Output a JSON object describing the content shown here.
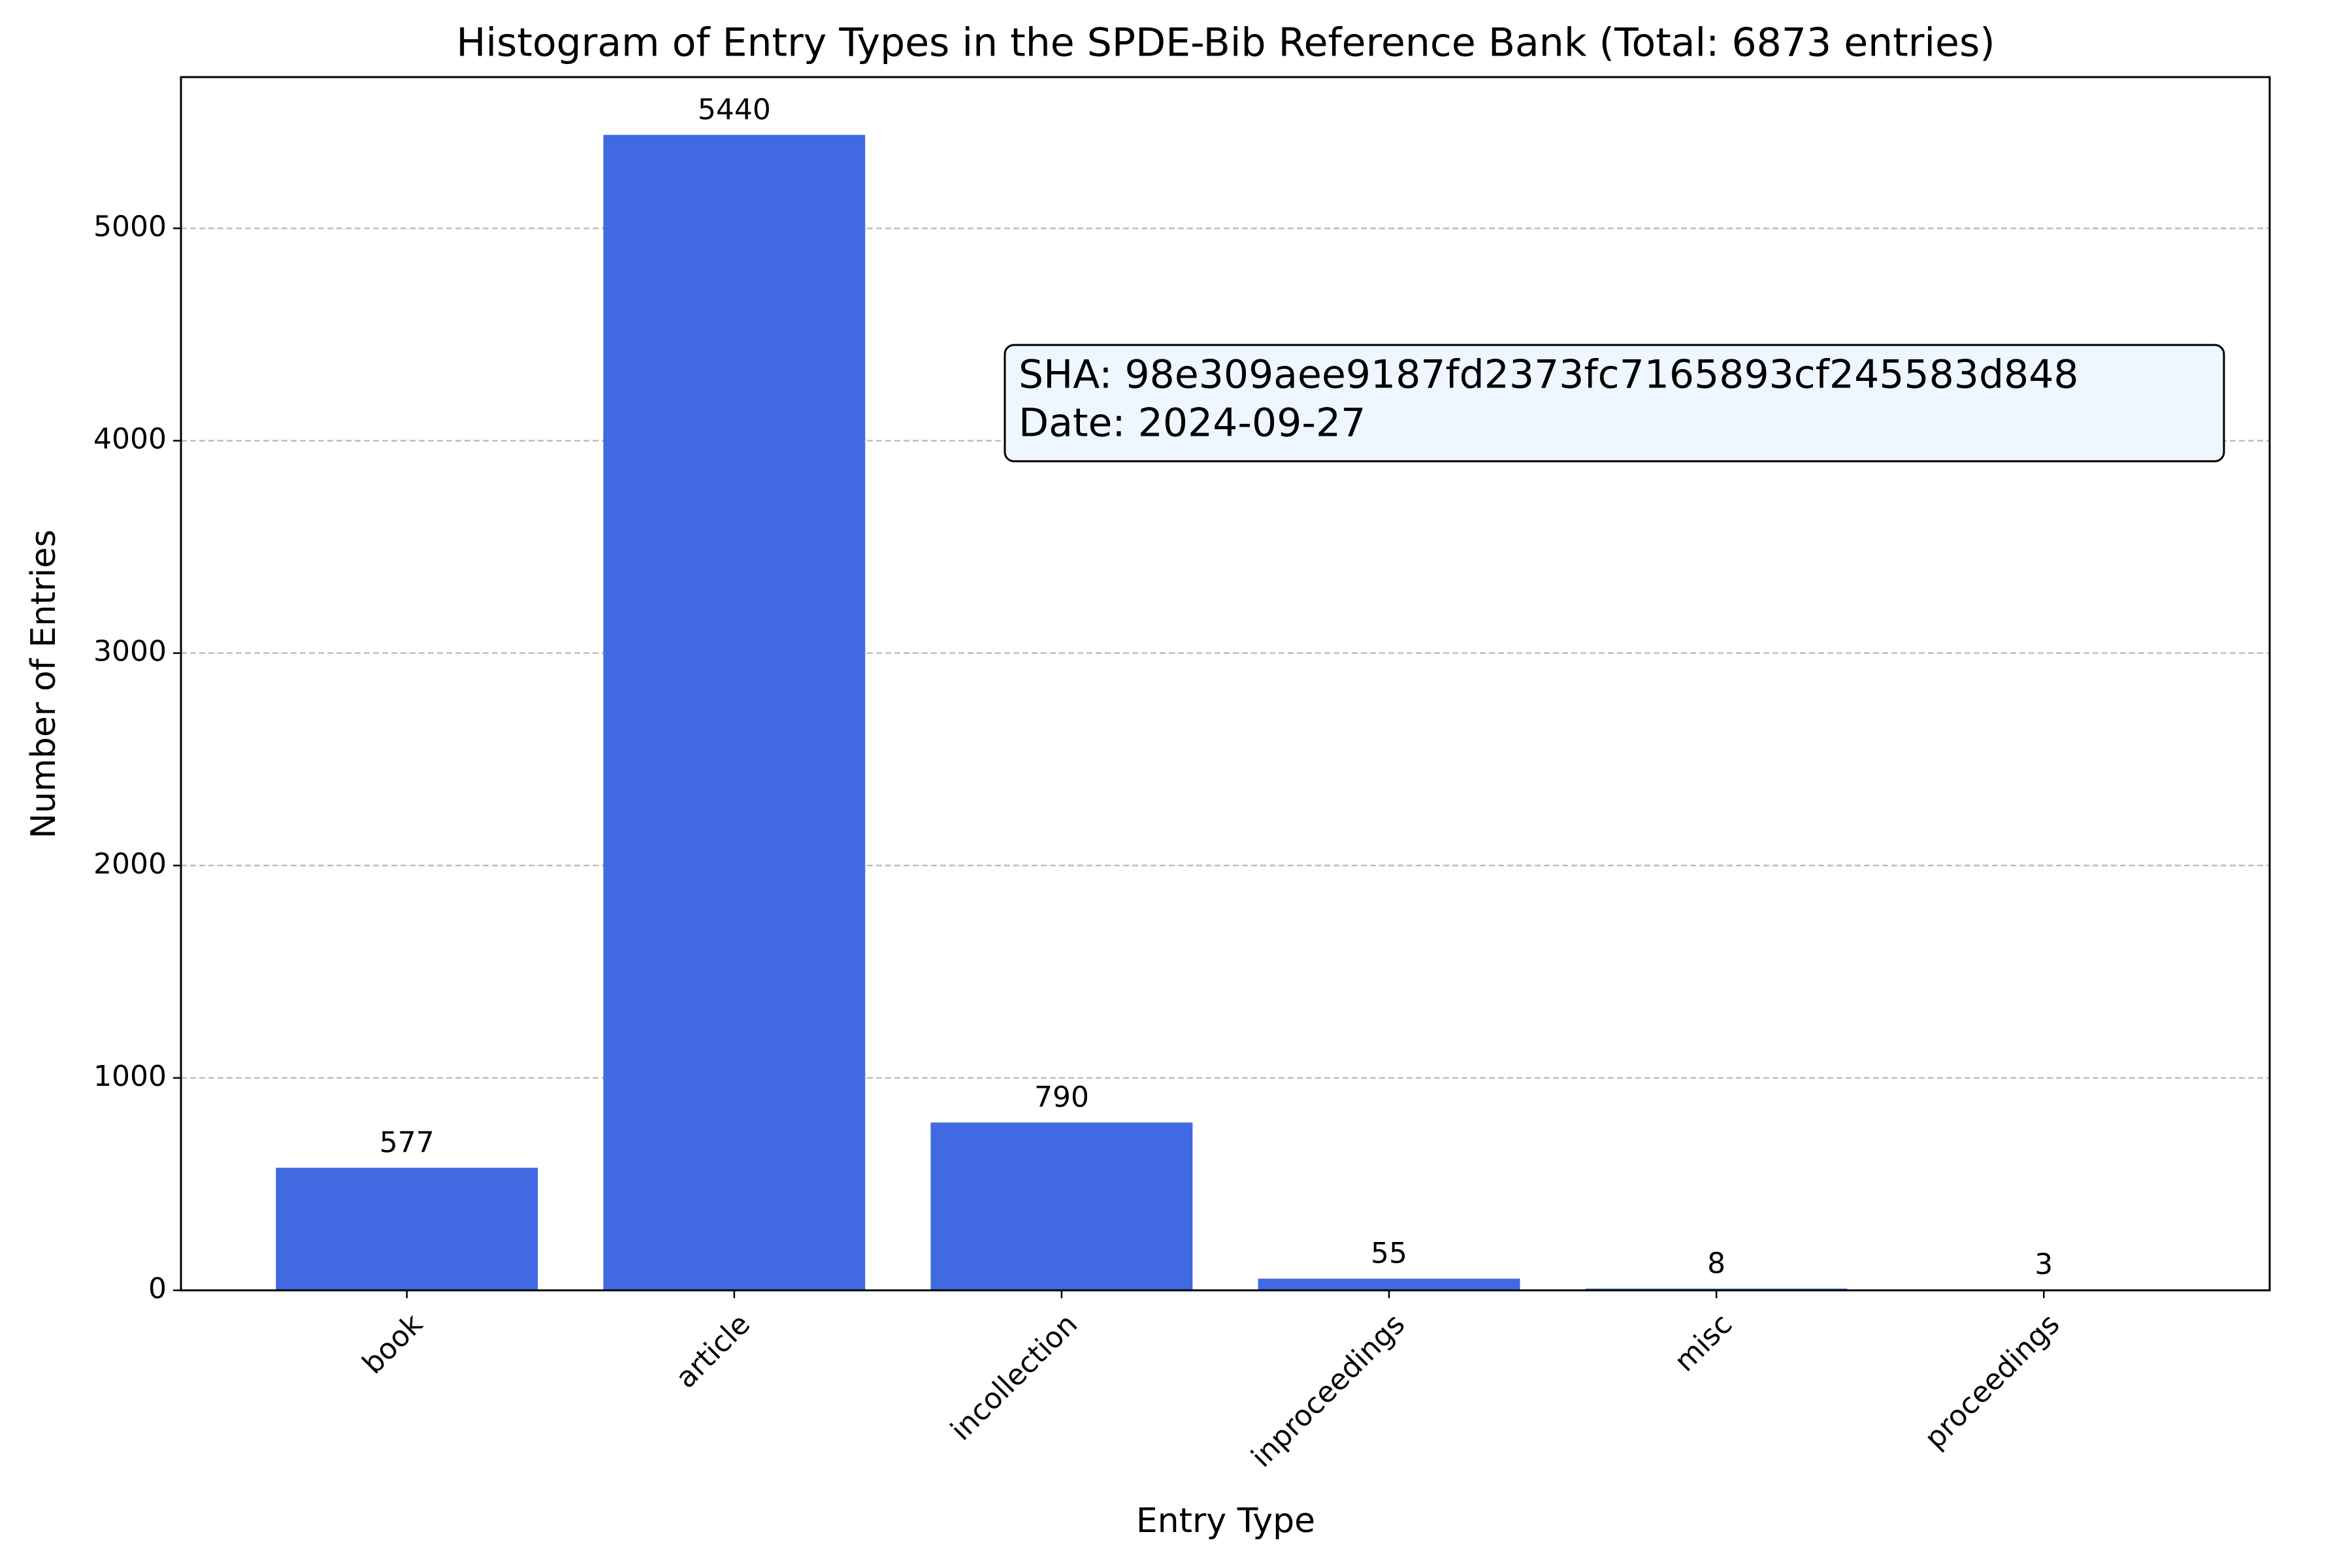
{
  "chart_data": {
    "type": "bar",
    "title": "Histogram of Entry Types in the SPDE-Bib Reference Bank (Total: 6873 entries)",
    "x_label": "Entry Type",
    "y_label": "Number of Entries",
    "categories": [
      "book",
      "article",
      "incollection",
      "inproceedings",
      "misc",
      "proceedings"
    ],
    "values": [
      577,
      5440,
      790,
      55,
      8,
      3
    ],
    "color": "#4169e1",
    "ylim": [
      0,
      5712
    ],
    "yticks": [
      0,
      1000,
      2000,
      3000,
      4000,
      5000
    ],
    "grid": true,
    "annotation": [
      "SHA: 98e309aee9187fd2373fc7165893cf245583d848",
      "Date: 2024-09-27"
    ]
  }
}
